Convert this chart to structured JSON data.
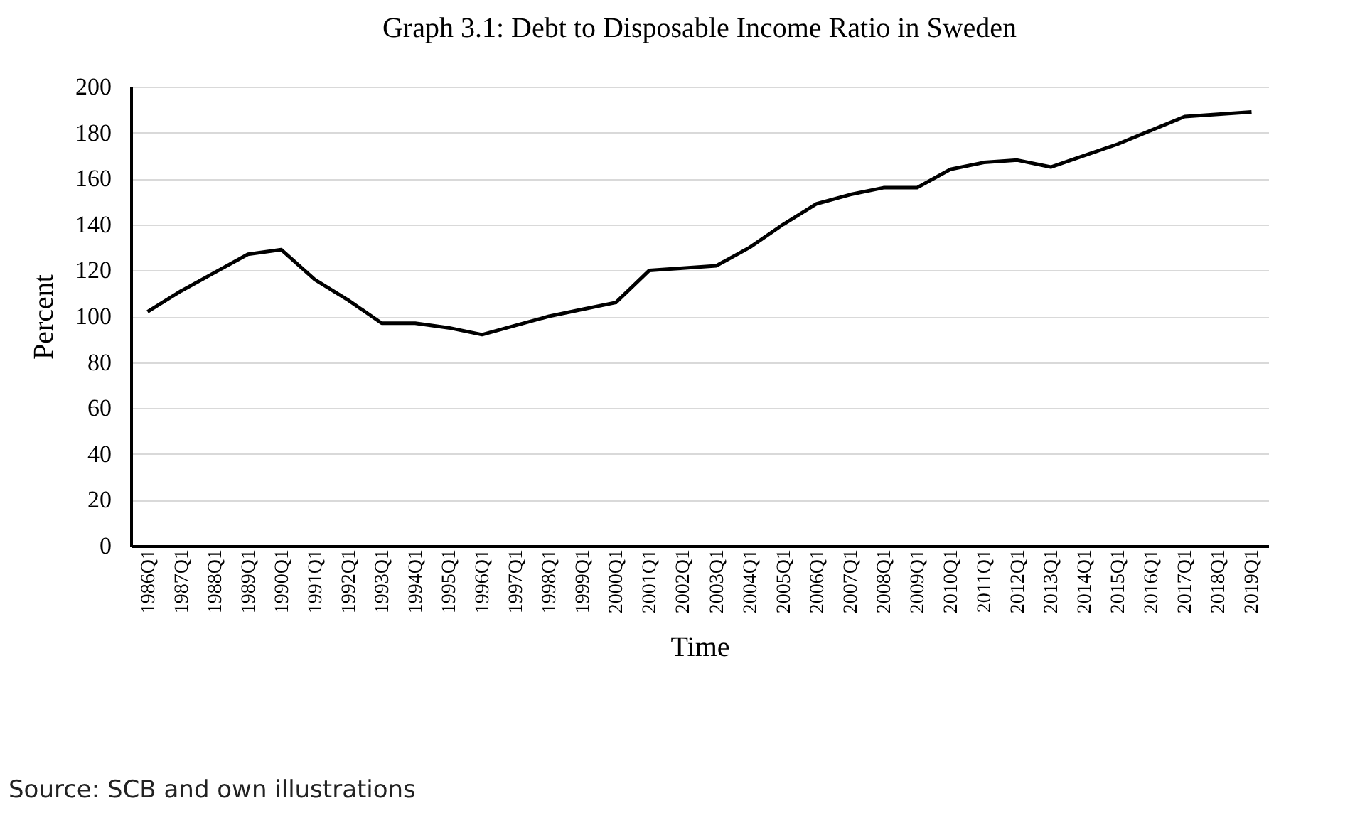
{
  "chart_data": {
    "type": "line",
    "title": "Graph 3.1: Debt to Disposable Income Ratio in Sweden",
    "xlabel": "Time",
    "ylabel": "Percent",
    "categories": [
      "1986Q1",
      "1987Q1",
      "1988Q1",
      "1989Q1",
      "1990Q1",
      "1991Q1",
      "1992Q1",
      "1993Q1",
      "1994Q1",
      "1995Q1",
      "1996Q1",
      "1997Q1",
      "1998Q1",
      "1999Q1",
      "2000Q1",
      "2001Q1",
      "2002Q1",
      "2003Q1",
      "2004Q1",
      "2005Q1",
      "2006Q1",
      "2007Q1",
      "2008Q1",
      "2009Q1",
      "2010Q1",
      "2011Q1",
      "2012Q1",
      "2013Q1",
      "2014Q1",
      "2015Q1",
      "2016Q1",
      "2017Q1",
      "2018Q1",
      "2019Q1"
    ],
    "series": [
      {
        "color": "#000000",
        "values": [
          102,
          111,
          119,
          127,
          129,
          116,
          107,
          97,
          97,
          95,
          92,
          96,
          100,
          103,
          106,
          120,
          121,
          122,
          130,
          140,
          149,
          153,
          156,
          156,
          164,
          167,
          168,
          165,
          170,
          175,
          181,
          187,
          188,
          189
        ]
      }
    ],
    "ylim": [
      0,
      200
    ],
    "yticks": [
      0,
      20,
      40,
      60,
      80,
      100,
      120,
      140,
      160,
      180,
      200
    ],
    "grid": "y",
    "legend": false,
    "annotations": [
      "Source: SCB and own illustrations"
    ]
  }
}
